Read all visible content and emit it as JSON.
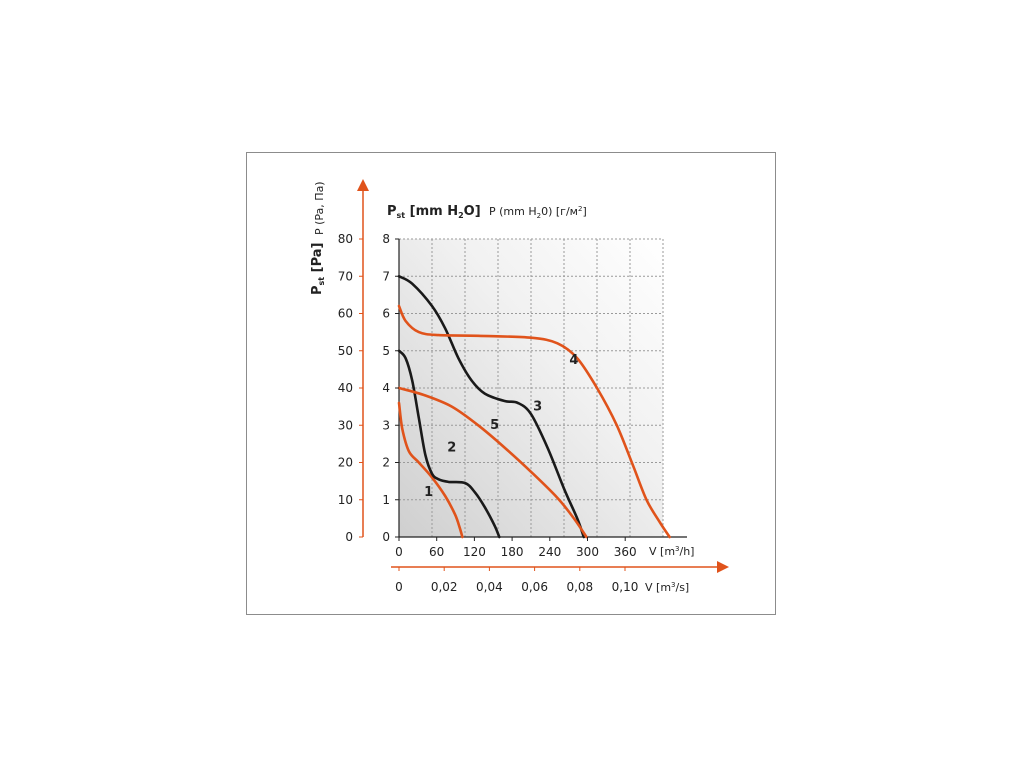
{
  "chart_data": {
    "type": "line",
    "title_left": "P",
    "title_left_sub": "st",
    "title_left_tail": " [mm H",
    "title_left_sub2": "2",
    "title_left_end": "O]",
    "title_right": "P (mm H",
    "title_right_sub": "2",
    "title_right_end": "0) [г/м",
    "title_right_sup": "2",
    "title_right_close": "]",
    "ylabel_pa": "P",
    "ylabel_pa_sub": "st",
    "ylabel_pa_tail": " [Pa]",
    "ylabel_ru": "P (Pa, Па)",
    "y_pa_ticks": [
      "80",
      "70",
      "60",
      "50",
      "40",
      "30",
      "20",
      "10",
      "0"
    ],
    "y_mm_ticks": [
      "8",
      "7",
      "6",
      "5",
      "4",
      "3",
      "2",
      "1",
      "0"
    ],
    "x_m3h_ticks": [
      "0",
      "60",
      "120",
      "180",
      "240",
      "300",
      "360"
    ],
    "x_m3h_label": "V [m",
    "x_m3h_label_sup": "3",
    "x_m3h_label_tail": "/h]",
    "x_m3s_ticks": [
      "0",
      "0,02",
      "0,04",
      "0,06",
      "0,08",
      "0,10"
    ],
    "x_m3s_label": "V [m",
    "x_m3s_label_sup": "3",
    "x_m3s_label_tail": "/s]",
    "xlim": [
      0,
      400
    ],
    "ylim": [
      0,
      8
    ],
    "grid": true,
    "colors": {
      "orange": "#e0531b",
      "black": "#1a1a1a",
      "grid": "#9a9a9a"
    },
    "series": [
      {
        "name": "1",
        "color": "#e0531b",
        "x": [
          0,
          5,
          15,
          30,
          50,
          70,
          85,
          92,
          96
        ],
        "y": [
          3.6,
          2.9,
          2.3,
          2.0,
          1.6,
          1.1,
          0.6,
          0.25,
          0
        ]
      },
      {
        "name": "2",
        "color": "#1a1a1a",
        "x": [
          0,
          10,
          20,
          30,
          40,
          50,
          60,
          75,
          100,
          115,
          130,
          145,
          152
        ],
        "y": [
          5.0,
          4.8,
          4.2,
          3.2,
          2.2,
          1.7,
          1.55,
          1.48,
          1.45,
          1.2,
          0.8,
          0.3,
          0
        ]
      },
      {
        "name": "3",
        "color": "#1a1a1a",
        "x": [
          0,
          20,
          50,
          70,
          90,
          110,
          130,
          160,
          180,
          200,
          225,
          250,
          270,
          280
        ],
        "y": [
          7.0,
          6.8,
          6.2,
          5.6,
          4.8,
          4.2,
          3.85,
          3.65,
          3.6,
          3.3,
          2.4,
          1.3,
          0.5,
          0
        ]
      },
      {
        "name": "4",
        "color": "#e0531b",
        "x": [
          0,
          10,
          30,
          60,
          120,
          200,
          240,
          270,
          300,
          330,
          355,
          375,
          395,
          410
        ],
        "y": [
          6.2,
          5.8,
          5.5,
          5.42,
          5.4,
          5.35,
          5.2,
          4.8,
          4.0,
          3.0,
          1.9,
          1.0,
          0.4,
          0
        ]
      },
      {
        "name": "5",
        "color": "#e0531b",
        "x": [
          0,
          40,
          80,
          120,
          160,
          200,
          240,
          265,
          284
        ],
        "y": [
          4.0,
          3.8,
          3.5,
          3.0,
          2.4,
          1.75,
          1.05,
          0.5,
          0
        ]
      }
    ],
    "curve_labels": [
      {
        "text": "1",
        "x": 45,
        "y": 1.1
      },
      {
        "text": "2",
        "x": 80,
        "y": 2.3
      },
      {
        "text": "3",
        "x": 210,
        "y": 3.4
      },
      {
        "text": "4",
        "x": 265,
        "y": 4.65
      },
      {
        "text": "5",
        "x": 145,
        "y": 2.9
      }
    ]
  }
}
